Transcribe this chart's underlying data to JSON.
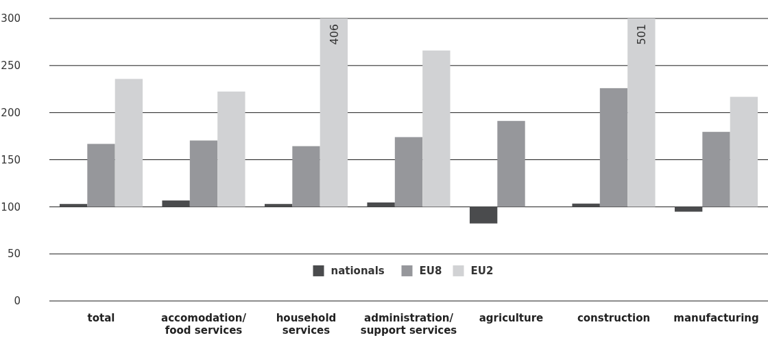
{
  "chart_data": {
    "type": "bar",
    "categories": [
      "total",
      "accomodation/ food services",
      "household services",
      "administration/ support services",
      "agriculture",
      "construction",
      "manufacturing"
    ],
    "series": [
      {
        "name": "nationals",
        "color": "#4a4b4d",
        "base": [
          100,
          100,
          100,
          100,
          100,
          100,
          100
        ],
        "values": [
          3,
          6.7,
          3,
          4.6,
          -17.7,
          3.4,
          -5.2
        ]
      },
      {
        "name": "EU8",
        "color": "#96979b",
        "base": [
          100,
          100,
          100,
          100,
          100,
          100,
          100
        ],
        "values": [
          66.8,
          70.4,
          64.4,
          74,
          91.2,
          126,
          79.6
        ]
      },
      {
        "name": "EU2",
        "color": "#d1d2d4",
        "base": [
          100,
          100,
          100,
          100,
          null,
          100,
          100
        ],
        "values": [
          135.8,
          122.4,
          200,
          166,
          null,
          200,
          116.8
        ]
      }
    ],
    "ylim": [
      0,
      300
    ],
    "yticks": [
      0,
      50,
      100,
      150,
      200,
      250,
      300
    ],
    "grid": "y",
    "legend": "bottom",
    "annotations": [
      "406",
      "501"
    ]
  }
}
